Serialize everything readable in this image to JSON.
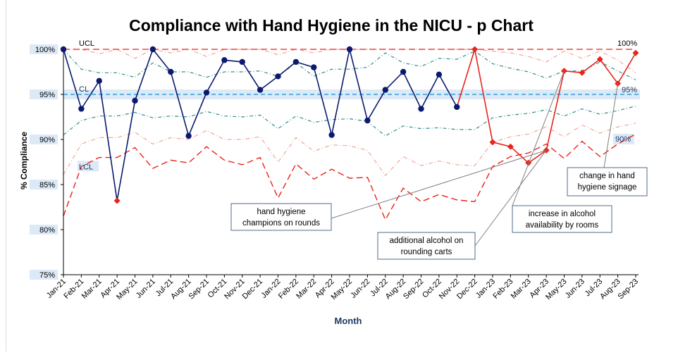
{
  "chart_data": {
    "type": "line",
    "title": "Compliance with Hand Hygiene in the NICU - p Chart",
    "xlabel": "Month",
    "ylabel": "% Compliance",
    "ylim": [
      75,
      100
    ],
    "yticks": [
      75,
      80,
      85,
      90,
      95,
      100
    ],
    "ytick_labels": [
      "75%",
      "80%",
      "85%",
      "90%",
      "95%",
      "100%"
    ],
    "grid": false,
    "categories": [
      "Jan-21",
      "Feb-21",
      "Mar-21",
      "Apr-21",
      "May-21",
      "Jun-21",
      "Jul-21",
      "Aug-21",
      "Sep-21",
      "Oct-21",
      "Nov-21",
      "Dec-21",
      "Jan-22",
      "Feb-22",
      "Mar-22",
      "Apr-22",
      "May-22",
      "Jun-22",
      "Jul-22",
      "Aug-22",
      "Sep-22",
      "Oct-22",
      "Nov-22",
      "Dec-22",
      "Jan-23",
      "Feb-23",
      "Mar-23",
      "Apr-23",
      "May-23",
      "Jun-23",
      "Jul-23",
      "Aug-23",
      "Sep-23"
    ],
    "series": [
      {
        "name": "",
        "role": "baseline",
        "color": "#0b1a6e",
        "values": [
          100,
          93.4,
          96.5,
          83.2,
          94.3,
          100,
          97.5,
          90.4,
          95.2,
          98.8,
          98.6,
          95.5,
          97.0,
          98.6,
          98.0,
          90.5,
          100,
          92.1,
          95.5,
          97.5,
          93.4,
          97.2,
          93.6,
          100,
          89.7,
          89.2,
          87.4,
          88.8,
          97.6,
          97.4,
          98.9,
          96.2,
          99.6
        ]
      }
    ],
    "baseline_end_index": 22,
    "highlight_color": "#e8231c",
    "outlier_index": 3,
    "center_line": {
      "label": "CL",
      "value": 95,
      "color": "#2e9fd6"
    },
    "limits": {
      "ucl_label": "UCL",
      "lcl_label": "LCL",
      "ucl": [
        100,
        100,
        100,
        100,
        100,
        100,
        100,
        100,
        100,
        100,
        100,
        100,
        100,
        100,
        100,
        100,
        100,
        100,
        100,
        100,
        100,
        100,
        100,
        100,
        100,
        100,
        100,
        100,
        100,
        100,
        100,
        100,
        100
      ],
      "upper_2sigma": [
        100,
        97.8,
        97.4,
        97.4,
        96.9,
        98.5,
        97.5,
        97.5,
        96.9,
        97.5,
        97.5,
        97.6,
        97.0,
        98.5,
        97.0,
        97.8,
        97.8,
        98.0,
        99.6,
        98.5,
        98.1,
        99.0,
        98.9,
        99.8,
        98.4,
        97.9,
        97.5,
        96.8,
        97.6,
        97.6,
        98.6,
        97.6,
        96.6
      ],
      "upper_1sigma": [
        100,
        100,
        99.5,
        100,
        99.0,
        100,
        99.6,
        100,
        99.2,
        100,
        100,
        100,
        99.4,
        100,
        99.6,
        100,
        100,
        100,
        100,
        100,
        100,
        100,
        100,
        100,
        99.8,
        99.6,
        99.2,
        98.6,
        99.8,
        99.0,
        99.8,
        98.8,
        97.4
      ],
      "lower_2sigma": [
        90.5,
        92.1,
        92.6,
        92.6,
        93.0,
        92.4,
        92.6,
        92.5,
        93.1,
        92.6,
        92.5,
        92.7,
        91.2,
        92.6,
        91.9,
        92.2,
        92.3,
        92.0,
        90.4,
        91.5,
        91.2,
        91.3,
        91.1,
        91.1,
        92.4,
        92.7,
        92.9,
        93.3,
        92.6,
        93.4,
        92.8,
        93.2,
        93.7
      ],
      "lower_1sigma": [
        86.1,
        89.5,
        90.2,
        90.2,
        90.8,
        89.5,
        90.2,
        90.0,
        91.0,
        90.0,
        90.0,
        90.3,
        87.5,
        90.2,
        88.7,
        89.4,
        89.3,
        88.8,
        86.0,
        88.1,
        87.1,
        87.6,
        87.2,
        87.1,
        89.7,
        90.3,
        90.6,
        91.4,
        90.3,
        91.6,
        90.7,
        91.4,
        91.8
      ],
      "lcl": [
        81.5,
        87.0,
        88.0,
        88.0,
        89.1,
        86.8,
        87.7,
        87.4,
        89.2,
        87.7,
        87.2,
        88.0,
        83.5,
        87.3,
        85.6,
        86.7,
        85.7,
        85.8,
        81.1,
        84.6,
        83.1,
        83.9,
        83.3,
        83.1,
        87.0,
        88.1,
        88.5,
        89.5,
        87.9,
        89.8,
        88.1,
        89.5,
        90.6
      ]
    },
    "post_limits": {
      "start_index": 23,
      "ucl": [
        100,
        100,
        100,
        100,
        100,
        100,
        100,
        100,
        100,
        100
      ],
      "upper_2sigma": [
        99.8,
        98.4,
        97.9,
        97.5,
        96.8,
        97.6,
        97.6,
        98.6,
        97.6,
        96.6
      ],
      "upper_1sigma": [
        100,
        99.8,
        99.6,
        99.2,
        98.6,
        99.8,
        99.0,
        99.8,
        98.8,
        97.4
      ]
    },
    "end_labels": [
      {
        "label": "100%",
        "value": 100
      },
      {
        "label": "95%",
        "value": 95
      },
      {
        "label": "90%",
        "value": 90
      }
    ],
    "annotations": [
      {
        "text_lines": [
          "hand hygiene",
          "champions on rounds"
        ],
        "target_index": 27
      },
      {
        "text_lines": [
          "additional alcohol on",
          "rounding carts"
        ],
        "target_index": 27
      },
      {
        "text_lines": [
          "increase in alcohol",
          "availability by rooms"
        ],
        "target_index": 28
      },
      {
        "text_lines": [
          "change in hand",
          "hygiene signage"
        ],
        "target_index": 31
      }
    ]
  }
}
